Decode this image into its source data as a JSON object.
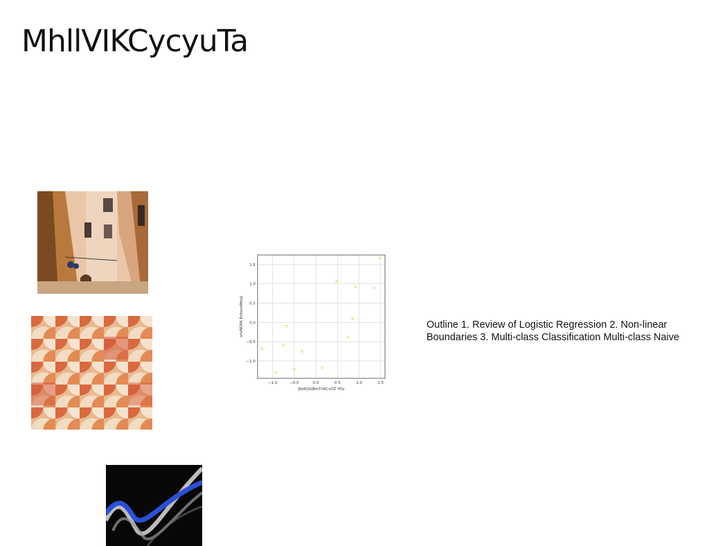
{
  "slide": {
    "title": "MhllVIKCycyuTa",
    "body_text": "Outline 1. Review of Logistic Regression 2. Non-linear Boundaries 3. Multi-class Classification Multi-class Naive"
  },
  "images": [
    {
      "name": "alley-street-photo",
      "description": "narrow alley between buildings"
    },
    {
      "name": "tile-pattern-photo",
      "description": "orange and beige semicircle tiles"
    },
    {
      "name": "abstract-wave-photo",
      "description": "dark abstract blue and white waves"
    }
  ],
  "chart_data": {
    "type": "scatter",
    "xlabel": "jNzKQGBmTnKCvOZ YOz",
    "ylabel": "shsNOPA EnbezdMeyJ",
    "xlim": [
      -1.35,
      1.6
    ],
    "ylim": [
      -1.45,
      1.75
    ],
    "grid": true,
    "marker_color": "#e8d97a",
    "x_ticks": [
      "−1.0",
      "−0.5",
      "0.0",
      "0.5",
      "1.0",
      "1.5"
    ],
    "y_ticks": [
      "1.5",
      "1.0",
      "0.5",
      "0.0",
      "−0.5",
      "−1.0"
    ],
    "x_tick_values": [
      -1.0,
      -0.5,
      0.0,
      0.5,
      1.0,
      1.5
    ],
    "y_tick_values": [
      1.5,
      1.0,
      0.5,
      0.0,
      -0.5,
      -1.0
    ],
    "points": [
      {
        "x": -1.25,
        "y": -0.68
      },
      {
        "x": -0.93,
        "y": -1.3
      },
      {
        "x": -0.75,
        "y": -0.58
      },
      {
        "x": -0.68,
        "y": -0.1
      },
      {
        "x": -0.5,
        "y": -1.22
      },
      {
        "x": -0.32,
        "y": -0.75
      },
      {
        "x": 0.15,
        "y": -1.18
      },
      {
        "x": 0.48,
        "y": 1.07
      },
      {
        "x": 0.75,
        "y": -0.38
      },
      {
        "x": 0.85,
        "y": 0.1
      },
      {
        "x": 0.92,
        "y": 0.92
      },
      {
        "x": 1.35,
        "y": 0.9
      },
      {
        "x": 1.48,
        "y": 1.67
      }
    ]
  }
}
